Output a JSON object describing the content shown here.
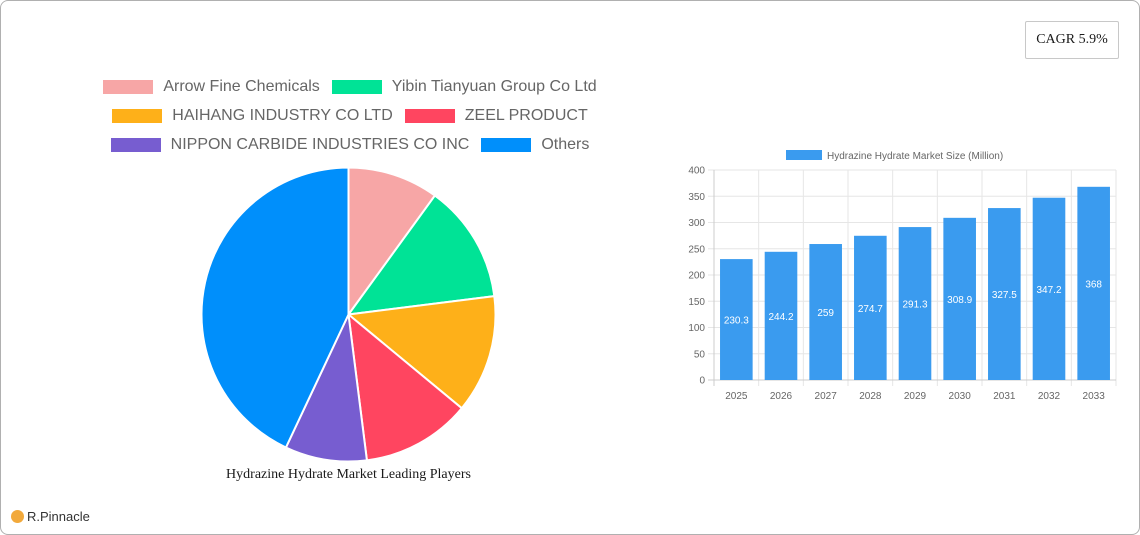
{
  "cagr": {
    "label": "CAGR 5.9%"
  },
  "brand": {
    "name": "R.Pinnacle",
    "icon": "pinnacle-logo-icon"
  },
  "pie": {
    "title": "Hydrazine Hydrate Market Leading Players",
    "legend_rows": [
      [
        {
          "label": "Arrow Fine Chemicals",
          "color": "#f7a6a6"
        },
        {
          "label": "Yibin Tianyuan Group Co  Ltd",
          "color": "#00e396"
        }
      ],
      [
        {
          "label": "HAIHANG INDUSTRY CO  LTD",
          "color": "#feb019"
        },
        {
          "label": "ZEEL PRODUCT",
          "color": "#ff4560"
        }
      ],
      [
        {
          "label": "NIPPON CARBIDE INDUSTRIES CO  INC",
          "color": "#775dd0"
        },
        {
          "label": "Others",
          "color": "#008ffb"
        }
      ]
    ]
  },
  "bar": {
    "legend_label": "Hydrazine Hydrate Market Size (Million)",
    "color": "#3a9bef"
  },
  "chart_data": [
    {
      "type": "pie",
      "title": "Hydrazine Hydrate Market Leading Players",
      "categories": [
        "Arrow Fine Chemicals",
        "Yibin Tianyuan Group Co  Ltd",
        "HAIHANG INDUSTRY CO  LTD",
        "ZEEL PRODUCT",
        "NIPPON CARBIDE INDUSTRIES CO  INC",
        "Others"
      ],
      "values": [
        10,
        13,
        13,
        12,
        9,
        43
      ],
      "colors": [
        "#f7a6a6",
        "#00e396",
        "#feb019",
        "#ff4560",
        "#775dd0",
        "#008ffb"
      ],
      "legend_position": "top"
    },
    {
      "type": "bar",
      "title": "",
      "series": [
        {
          "name": "Hydrazine Hydrate Market Size (Million)",
          "values": [
            230.3,
            244.2,
            259,
            274.7,
            291.3,
            308.9,
            327.5,
            347.2,
            368
          ]
        }
      ],
      "categories": [
        "2025",
        "2026",
        "2027",
        "2028",
        "2029",
        "2030",
        "2031",
        "2032",
        "2033"
      ],
      "xlabel": "",
      "ylabel": "",
      "ylim": [
        0,
        400
      ],
      "yticks": [
        0,
        50,
        100,
        150,
        200,
        250,
        300,
        350,
        400
      ],
      "grid": true,
      "data_labels": true,
      "legend_position": "top"
    }
  ]
}
